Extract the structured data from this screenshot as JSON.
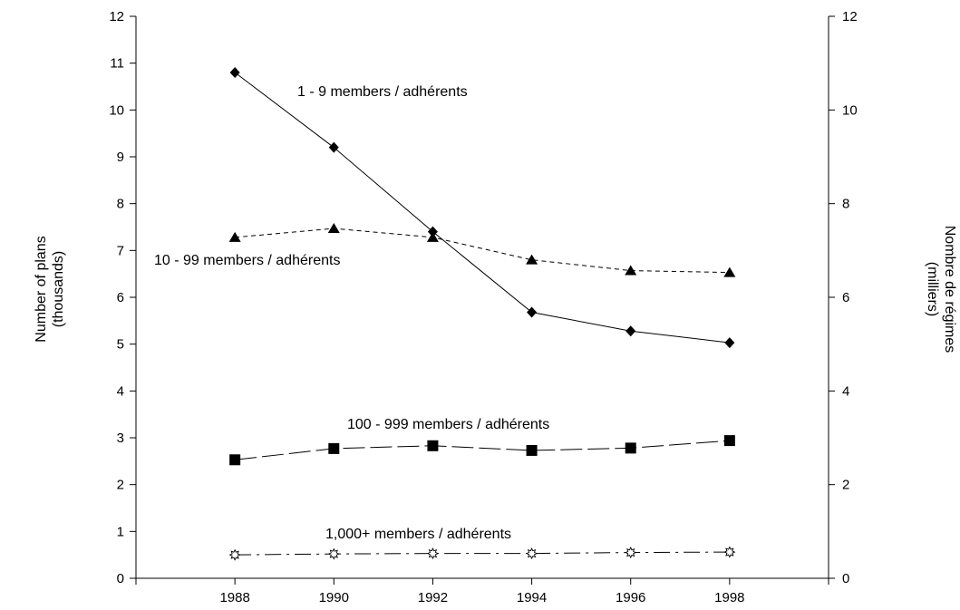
{
  "chart_data": {
    "type": "line",
    "x": [
      1988,
      1990,
      1992,
      1994,
      1996,
      1998
    ],
    "xlim": [
      1986,
      2000
    ],
    "x_ticks": [
      "1988",
      "1990",
      "1992",
      "1994",
      "1996",
      "1998"
    ],
    "y_left": {
      "label_line1": "Number of plans",
      "label_line2": "(thousands)",
      "ylim": [
        0,
        12
      ],
      "ticks": [
        "0",
        "1",
        "2",
        "3",
        "4",
        "5",
        "6",
        "7",
        "8",
        "9",
        "10",
        "11",
        "12"
      ]
    },
    "y_right": {
      "label_line1": "Nombre de régimes",
      "label_line2": "(milliers)",
      "ylim": [
        0,
        12
      ],
      "ticks": [
        "0",
        "2",
        "4",
        "6",
        "8",
        "10",
        "12"
      ]
    },
    "grid": false,
    "legend": "none",
    "series": [
      {
        "label": "1 - 9 members / adhérents",
        "marker": "diamond",
        "line": "solid",
        "values": [
          10.8,
          9.2,
          7.4,
          5.68,
          5.28,
          5.03
        ]
      },
      {
        "label": "10 - 99 members / adhérents",
        "marker": "triangle",
        "line": "short-dash",
        "values": [
          7.28,
          7.47,
          7.28,
          6.8,
          6.57,
          6.53
        ]
      },
      {
        "label": "100 - 999 members / adhérents",
        "marker": "square",
        "line": "long-dash",
        "values": [
          2.53,
          2.77,
          2.83,
          2.73,
          2.78,
          2.94
        ]
      },
      {
        "label": "1,000+ members / adhérents",
        "marker": "open-star",
        "line": "dash-dot",
        "values": [
          0.5,
          0.52,
          0.53,
          0.53,
          0.55,
          0.56
        ]
      }
    ]
  }
}
